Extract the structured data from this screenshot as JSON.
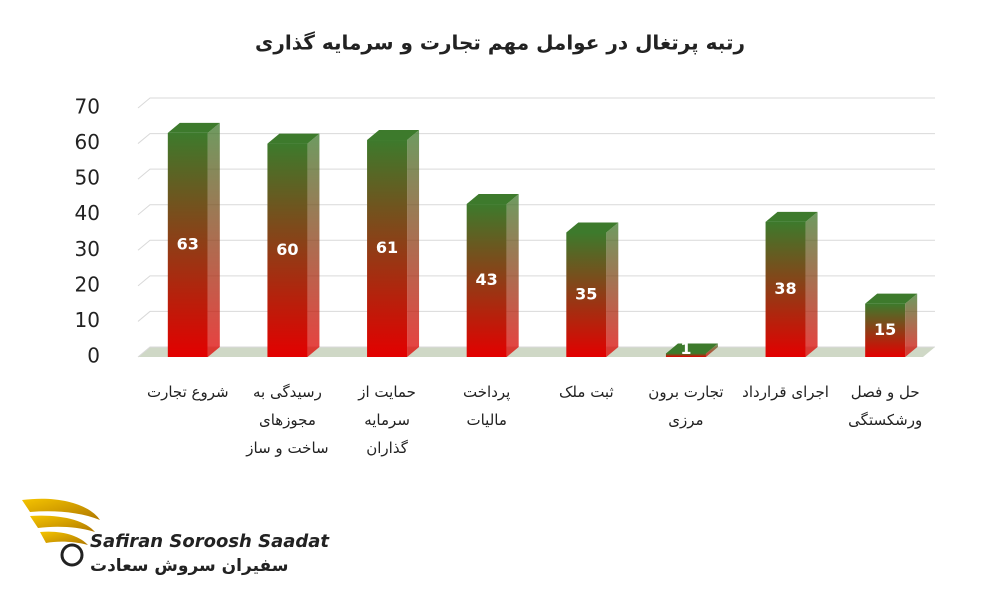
{
  "chart_data": {
    "type": "bar3d",
    "title": "رتبه پرتغال در عوامل مهم تجارت و سرمایه گذاری",
    "categories": [
      "شروع تجارت",
      "رسیدگی به مجوزهای ساخت و ساز",
      "حمایت از سرمایه گذاران",
      "پرداخت مالیات",
      "ثبت ملک",
      "تجارت برون مرزی",
      "اجرای قرارداد",
      "حل و فصل ورشکستگی"
    ],
    "values": [
      63,
      60,
      61,
      43,
      35,
      1,
      38,
      15
    ],
    "colors": {
      "top": "#3d7a2c",
      "bottom": "#e30000"
    },
    "ylim": [
      0,
      70
    ],
    "yticks": [
      0,
      10,
      20,
      30,
      40,
      50,
      60,
      70
    ],
    "grid": true
  },
  "logo": {
    "en": "Safiran Soroosh Saadat",
    "fa": "سفیران سروش سعادت"
  }
}
